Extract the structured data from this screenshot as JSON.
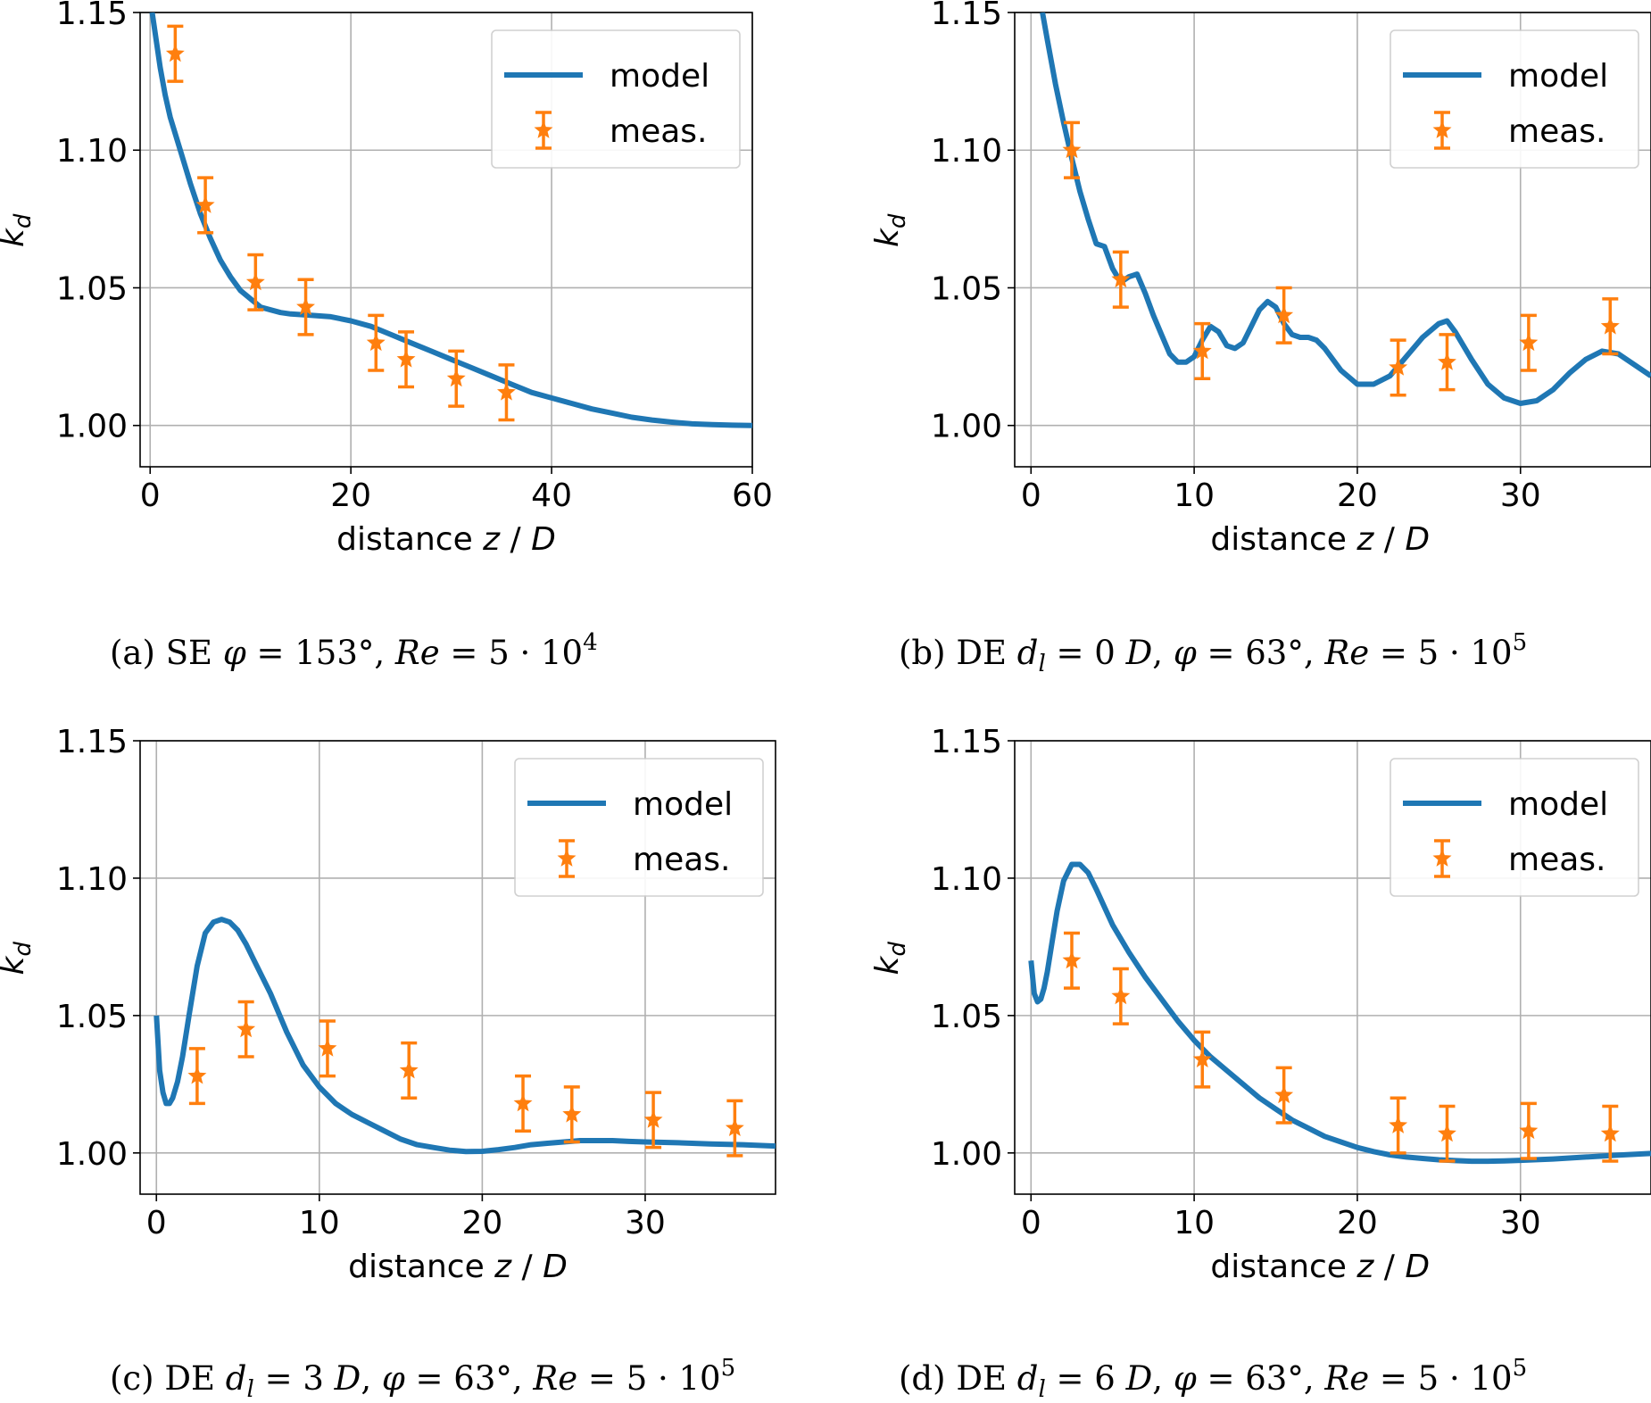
{
  "chart_data": [
    {
      "type": "line",
      "panel_id": "a",
      "caption": "(a) SE φ = 153°, Re = 5 · 10^4",
      "caption_parts": {
        "prefix": "(a) SE ",
        "phi": "φ",
        "phi_val": " = 153°, ",
        "re": "Re",
        "re_val": " = 5 · 10",
        "sup": "4"
      },
      "xlabel": "distance z / D",
      "ylabel": "k_d",
      "xlim": [
        -1,
        60
      ],
      "ylim": [
        0.985,
        1.15
      ],
      "xticks": [
        0,
        20,
        40,
        60
      ],
      "xtick_labels": [
        "0",
        "20",
        "40",
        "60"
      ],
      "yticks": [
        1.0,
        1.05,
        1.1,
        1.15
      ],
      "ytick_labels": [
        "1.00",
        "1.05",
        "1.10",
        "1.15"
      ],
      "grid": true,
      "legend": {
        "placement": "top-right",
        "entries": [
          "model",
          "meas."
        ]
      },
      "series": [
        {
          "name": "model",
          "kind": "line",
          "color": "#1f77b4",
          "x": [
            0.2,
            0.6,
            1,
            1.5,
            2,
            3,
            4,
            5,
            6,
            7,
            8,
            9,
            10,
            11,
            12,
            13,
            14,
            16,
            18,
            20,
            22,
            24,
            26,
            28,
            30,
            32,
            34,
            36,
            38,
            40,
            42,
            44,
            46,
            48,
            50,
            52,
            54,
            56,
            58,
            60
          ],
          "y": [
            1.15,
            1.14,
            1.13,
            1.12,
            1.112,
            1.1,
            1.088,
            1.077,
            1.068,
            1.06,
            1.054,
            1.049,
            1.046,
            1.043,
            1.042,
            1.041,
            1.0405,
            1.04,
            1.0395,
            1.038,
            1.036,
            1.033,
            1.03,
            1.027,
            1.024,
            1.021,
            1.018,
            1.015,
            1.012,
            1.01,
            1.008,
            1.006,
            1.0045,
            1.003,
            1.002,
            1.0012,
            1.0006,
            1.0003,
            1.0001,
            1.0
          ]
        },
        {
          "name": "meas.",
          "kind": "errorbar",
          "color": "#ff7f0e",
          "x": [
            2.5,
            5.5,
            10.5,
            15.5,
            22.5,
            25.5,
            30.5,
            35.5
          ],
          "y": [
            1.135,
            1.08,
            1.052,
            1.043,
            1.03,
            1.024,
            1.017,
            1.012
          ],
          "err": [
            0.01,
            0.01,
            0.01,
            0.01,
            0.01,
            0.01,
            0.01,
            0.01
          ]
        }
      ]
    },
    {
      "type": "line",
      "panel_id": "b",
      "caption": "(b) DE d_l = 0 D, φ = 63°, Re = 5 · 10^5",
      "caption_parts": {
        "prefix": "(b) DE ",
        "dl": "d",
        "dl_sub": "l",
        "dl_val": " = 0 ",
        "dl_unit": "D",
        "sep": ", ",
        "phi": "φ",
        "phi_val": " = 63°, ",
        "re": "Re",
        "re_val": " = 5 · 10",
        "sup": "5"
      },
      "xlabel": "distance z / D",
      "ylabel": "k_d",
      "xlim": [
        -1,
        38
      ],
      "ylim": [
        0.985,
        1.15
      ],
      "xticks": [
        0,
        10,
        20,
        30
      ],
      "xtick_labels": [
        "0",
        "10",
        "20",
        "30"
      ],
      "yticks": [
        1.0,
        1.05,
        1.1,
        1.15
      ],
      "ytick_labels": [
        "1.00",
        "1.05",
        "1.10",
        "1.15"
      ],
      "grid": true,
      "legend": {
        "placement": "top-right",
        "entries": [
          "model",
          "meas."
        ]
      },
      "series": [
        {
          "name": "model",
          "kind": "line",
          "color": "#1f77b4",
          "x": [
            0.7,
            1,
            1.5,
            2,
            2.5,
            3,
            3.5,
            4,
            4.5,
            5,
            5.5,
            6,
            6.5,
            7,
            7.5,
            8,
            8.5,
            9,
            9.5,
            10,
            10.5,
            11,
            11.5,
            12,
            12.5,
            13,
            13.5,
            14,
            14.5,
            15,
            15.5,
            16,
            16.5,
            17,
            17.5,
            18,
            19,
            20,
            21,
            22,
            23,
            24,
            25,
            25.5,
            26,
            27,
            28,
            29,
            30,
            31,
            32,
            33,
            34,
            35,
            36,
            37,
            38
          ],
          "y": [
            1.15,
            1.14,
            1.124,
            1.11,
            1.097,
            1.085,
            1.075,
            1.066,
            1.065,
            1.057,
            1.052,
            1.054,
            1.055,
            1.048,
            1.04,
            1.033,
            1.026,
            1.023,
            1.023,
            1.025,
            1.031,
            1.036,
            1.034,
            1.029,
            1.028,
            1.03,
            1.036,
            1.042,
            1.045,
            1.043,
            1.037,
            1.033,
            1.032,
            1.032,
            1.031,
            1.028,
            1.02,
            1.015,
            1.015,
            1.018,
            1.025,
            1.032,
            1.037,
            1.038,
            1.034,
            1.024,
            1.015,
            1.01,
            1.008,
            1.009,
            1.013,
            1.019,
            1.024,
            1.027,
            1.026,
            1.022,
            1.018
          ]
        },
        {
          "name": "meas.",
          "kind": "errorbar",
          "color": "#ff7f0e",
          "x": [
            2.5,
            5.5,
            10.5,
            15.5,
            22.5,
            25.5,
            30.5,
            35.5
          ],
          "y": [
            1.1,
            1.053,
            1.027,
            1.04,
            1.021,
            1.023,
            1.03,
            1.036
          ],
          "err": [
            0.01,
            0.01,
            0.01,
            0.01,
            0.01,
            0.01,
            0.01,
            0.01
          ]
        }
      ]
    },
    {
      "type": "line",
      "panel_id": "c",
      "caption": "(c) DE d_l = 3 D, φ = 63°, Re = 5 · 10^5",
      "caption_parts": {
        "prefix": "(c) DE ",
        "dl": "d",
        "dl_sub": "l",
        "dl_val": " = 3 ",
        "dl_unit": "D",
        "sep": ", ",
        "phi": "φ",
        "phi_val": " = 63°, ",
        "re": "Re",
        "re_val": " = 5 · 10",
        "sup": "5"
      },
      "xlabel": "distance z / D",
      "ylabel": "k_d",
      "xlim": [
        -1,
        38
      ],
      "ylim": [
        0.985,
        1.15
      ],
      "xticks": [
        0,
        10,
        20,
        30
      ],
      "xtick_labels": [
        "0",
        "10",
        "20",
        "30"
      ],
      "yticks": [
        1.0,
        1.05,
        1.1,
        1.15
      ],
      "ytick_labels": [
        "1.00",
        "1.05",
        "1.10",
        "1.15"
      ],
      "grid": true,
      "legend": {
        "placement": "top-right",
        "entries": [
          "model",
          "meas."
        ]
      },
      "series": [
        {
          "name": "model",
          "kind": "line",
          "color": "#1f77b4",
          "x": [
            0,
            0.2,
            0.4,
            0.6,
            0.8,
            1,
            1.3,
            1.6,
            2,
            2.5,
            3,
            3.5,
            4,
            4.5,
            5,
            5.5,
            6,
            7,
            8,
            9,
            10,
            11,
            12,
            13,
            14,
            15,
            16,
            17,
            18,
            19,
            20,
            21,
            22,
            23,
            24,
            25,
            26,
            27,
            28,
            29,
            30,
            32,
            34,
            36,
            38
          ],
          "y": [
            1.05,
            1.03,
            1.022,
            1.018,
            1.018,
            1.02,
            1.026,
            1.035,
            1.05,
            1.068,
            1.08,
            1.084,
            1.085,
            1.084,
            1.081,
            1.076,
            1.07,
            1.058,
            1.044,
            1.032,
            1.024,
            1.018,
            1.014,
            1.011,
            1.008,
            1.005,
            1.003,
            1.002,
            1.001,
            1.0005,
            1.0006,
            1.0012,
            1.002,
            1.003,
            1.0035,
            1.004,
            1.0045,
            1.0045,
            1.0045,
            1.0042,
            1.004,
            1.0037,
            1.0033,
            1.003,
            1.0025
          ]
        },
        {
          "name": "meas.",
          "kind": "errorbar",
          "color": "#ff7f0e",
          "x": [
            2.5,
            5.5,
            10.5,
            15.5,
            22.5,
            25.5,
            30.5,
            35.5
          ],
          "y": [
            1.028,
            1.045,
            1.038,
            1.03,
            1.018,
            1.014,
            1.012,
            1.009
          ],
          "err": [
            0.01,
            0.01,
            0.01,
            0.01,
            0.01,
            0.01,
            0.01,
            0.01
          ]
        }
      ]
    },
    {
      "type": "line",
      "panel_id": "d",
      "caption": "(d) DE d_l = 6 D, φ = 63°, Re = 5 · 10^5",
      "caption_parts": {
        "prefix": "(d) DE ",
        "dl": "d",
        "dl_sub": "l",
        "dl_val": " = 6 ",
        "dl_unit": "D",
        "sep": ", ",
        "phi": "φ",
        "phi_val": " = 63°, ",
        "re": "Re",
        "re_val": " = 5 · 10",
        "sup": "5"
      },
      "xlabel": "distance z / D",
      "ylabel": "k_d",
      "xlim": [
        -1,
        38
      ],
      "ylim": [
        0.985,
        1.15
      ],
      "xticks": [
        0,
        10,
        20,
        30
      ],
      "xtick_labels": [
        "0",
        "10",
        "20",
        "30"
      ],
      "yticks": [
        1.0,
        1.05,
        1.1,
        1.15
      ],
      "ytick_labels": [
        "1.00",
        "1.05",
        "1.10",
        "1.15"
      ],
      "grid": true,
      "legend": {
        "placement": "top-right",
        "entries": [
          "model",
          "meas."
        ]
      },
      "series": [
        {
          "name": "model",
          "kind": "line",
          "color": "#1f77b4",
          "x": [
            0,
            0.2,
            0.4,
            0.6,
            0.8,
            1,
            1.3,
            1.6,
            2,
            2.5,
            3,
            3.5,
            4,
            5,
            6,
            7,
            8,
            9,
            10,
            11,
            12,
            13,
            14,
            15,
            16,
            17,
            18,
            19,
            20,
            21,
            22,
            23,
            24,
            25,
            26,
            27,
            28,
            29,
            30,
            32,
            34,
            36,
            38
          ],
          "y": [
            1.07,
            1.058,
            1.055,
            1.056,
            1.06,
            1.066,
            1.077,
            1.088,
            1.099,
            1.105,
            1.105,
            1.102,
            1.096,
            1.083,
            1.073,
            1.064,
            1.056,
            1.048,
            1.041,
            1.035,
            1.03,
            1.025,
            1.02,
            1.016,
            1.012,
            1.009,
            1.006,
            1.004,
            1.002,
            1.0005,
            0.9993,
            0.9985,
            0.998,
            0.9975,
            0.9972,
            0.997,
            0.997,
            0.9971,
            0.9973,
            0.9978,
            0.9985,
            0.9992,
            0.9998
          ]
        },
        {
          "name": "meas.",
          "kind": "errorbar",
          "color": "#ff7f0e",
          "x": [
            2.5,
            5.5,
            10.5,
            15.5,
            22.5,
            25.5,
            30.5,
            35.5
          ],
          "y": [
            1.07,
            1.057,
            1.034,
            1.021,
            1.01,
            1.007,
            1.008,
            1.007
          ],
          "err": [
            0.01,
            0.01,
            0.01,
            0.01,
            0.01,
            0.01,
            0.01,
            0.01
          ]
        }
      ]
    }
  ]
}
